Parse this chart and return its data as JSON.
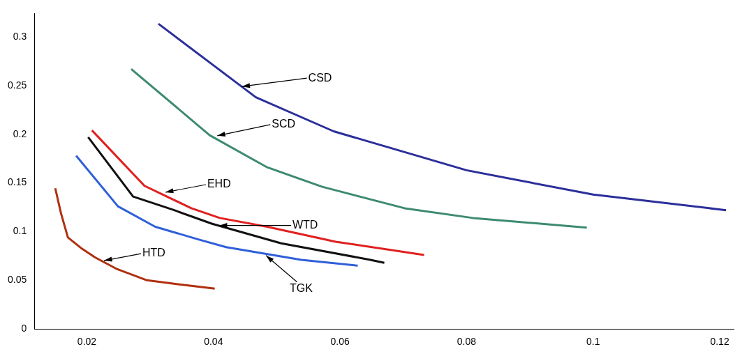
{
  "chart_data": {
    "type": "line",
    "xlim": [
      0.0117,
      0.1222
    ],
    "ylim": [
      0,
      0.324
    ],
    "xticks": [
      0.02,
      0.04,
      0.06,
      0.08,
      0.1,
      0.12
    ],
    "yticks": [
      0,
      0.05,
      0.1,
      0.15,
      0.2,
      0.25,
      0.3
    ],
    "grid": false,
    "legend": false,
    "marker": "none",
    "line_style": "solid",
    "series": [
      {
        "color": "#2b2f9a",
        "x": [
          0.0313,
          0.0467,
          0.059,
          0.08,
          0.1,
          0.121
        ],
        "values": [
          0.3135,
          0.238,
          0.203,
          0.163,
          0.138,
          0.122
        ]
      },
      {
        "color": "#3d8a72",
        "x": [
          0.027,
          0.0394,
          0.0485,
          0.0572,
          0.0702,
          0.081,
          0.099
        ],
        "values": [
          0.267,
          0.199,
          0.166,
          0.146,
          0.124,
          0.114,
          0.104
        ]
      },
      {
        "color": "#e02020",
        "x": [
          0.0208,
          0.0291,
          0.0365,
          0.041,
          0.0485,
          0.0593,
          0.0733
        ],
        "values": [
          0.204,
          0.147,
          0.124,
          0.114,
          0.105,
          0.0896,
          0.076
        ]
      },
      {
        "color": "#111111",
        "x": [
          0.0202,
          0.0273,
          0.0338,
          0.0398,
          0.0507,
          0.0648,
          0.067
        ],
        "values": [
          0.197,
          0.136,
          0.122,
          0.108,
          0.088,
          0.071,
          0.068
        ]
      },
      {
        "color": "#3060d8",
        "x": [
          0.0183,
          0.0249,
          0.0308,
          0.0376,
          0.042,
          0.0539,
          0.0628
        ],
        "values": [
          0.178,
          0.126,
          0.105,
          0.092,
          0.084,
          0.071,
          0.065
        ]
      },
      {
        "color": "#b03010",
        "x": [
          0.015,
          0.0159,
          0.017,
          0.0191,
          0.0213,
          0.0246,
          0.0295,
          0.0344,
          0.0402
        ],
        "values": [
          0.1445,
          0.119,
          0.094,
          0.083,
          0.0735,
          0.062,
          0.05,
          0.046,
          0.0415
        ]
      }
    ],
    "annotations": [
      {
        "text": "CSD",
        "x": 0.0445,
        "y": 0.249
      },
      {
        "text": "SCD",
        "x": 0.0406,
        "y": 0.1985
      },
      {
        "text": "EHD",
        "x": 0.0324,
        "y": 0.1404
      },
      {
        "text": "WTD",
        "x": 0.0409,
        "y": 0.1063
      },
      {
        "text": "TGK",
        "x": 0.0483,
        "y": 0.0755
      },
      {
        "text": "HTD",
        "x": 0.0227,
        "y": 0.0702
      }
    ]
  }
}
